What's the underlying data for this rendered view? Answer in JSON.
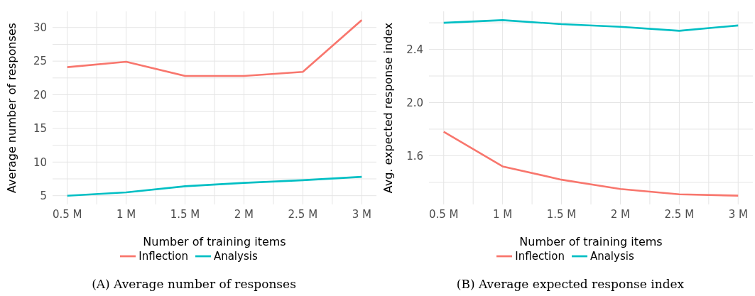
{
  "chart_data": [
    {
      "type": "line",
      "xlabel": "Number of training items",
      "ylabel": "Average number of responses",
      "x": [
        0.5,
        1,
        1.5,
        2,
        2.5,
        3
      ],
      "series": [
        {
          "name": "Inflection",
          "color": "#f8766d",
          "values": [
            24.1,
            24.9,
            22.8,
            22.8,
            23.4,
            31.1
          ]
        },
        {
          "name": "Analysis",
          "color": "#00bfc4",
          "values": [
            5.0,
            5.5,
            6.4,
            6.9,
            7.3,
            7.8
          ]
        }
      ],
      "xlim": [
        0.375,
        3.125
      ],
      "xticks": [
        {
          "value": 0.5,
          "label": "0.5 M"
        },
        {
          "value": 0.75,
          "label": null
        },
        {
          "value": 1,
          "label": "1 M"
        },
        {
          "value": 1.25,
          "label": null
        },
        {
          "value": 1.5,
          "label": "1.5 M"
        },
        {
          "value": 1.75,
          "label": null
        },
        {
          "value": 2,
          "label": "2 M"
        },
        {
          "value": 2.25,
          "label": null
        },
        {
          "value": 2.5,
          "label": "2.5 M"
        },
        {
          "value": 2.75,
          "label": null
        },
        {
          "value": 3,
          "label": "3 M"
        }
      ],
      "ylim": [
        3.7,
        32.4
      ],
      "yticks": [
        5,
        {
          "value": 7.5,
          "label": null
        },
        10,
        {
          "value": 12.5,
          "label": null
        },
        15,
        {
          "value": 17.5,
          "label": null
        },
        20,
        {
          "value": 22.5,
          "label": null
        },
        25,
        {
          "value": 27.5,
          "label": null
        },
        30
      ],
      "grid": true,
      "legend": "bottom",
      "marker": "none",
      "line_style": "solid",
      "annotations": [
        "(A) Average number of responses"
      ]
    },
    {
      "type": "line",
      "xlabel": "Number of training items",
      "ylabel": "Avg. expected response index",
      "x": [
        0.5,
        1,
        1.5,
        2,
        2.5,
        3
      ],
      "series": [
        {
          "name": "Inflection",
          "color": "#f8766d",
          "values": [
            1.78,
            1.52,
            1.42,
            1.35,
            1.31,
            1.3
          ]
        },
        {
          "name": "Analysis",
          "color": "#00bfc4",
          "values": [
            2.6,
            2.62,
            2.59,
            2.57,
            2.54,
            2.58
          ]
        }
      ],
      "xlim": [
        0.375,
        3.125
      ],
      "xticks": [
        {
          "value": 0.5,
          "label": "0.5 M"
        },
        {
          "value": 0.75,
          "label": null
        },
        {
          "value": 1,
          "label": "1 M"
        },
        {
          "value": 1.25,
          "label": null
        },
        {
          "value": 1.5,
          "label": "1.5 M"
        },
        {
          "value": 1.75,
          "label": null
        },
        {
          "value": 2,
          "label": "2 M"
        },
        {
          "value": 2.25,
          "label": null
        },
        {
          "value": 2.5,
          "label": "2.5 M"
        },
        {
          "value": 2.75,
          "label": null
        },
        {
          "value": 3,
          "label": "3 M"
        }
      ],
      "ylim": [
        1.234,
        2.686
      ],
      "yticks": [
        {
          "value": 1.4,
          "label": null
        },
        {
          "value": 1.6,
          "label": "1.6"
        },
        {
          "value": 1.8,
          "label": null
        },
        {
          "value": 2.0,
          "label": "2.0"
        },
        {
          "value": 2.2,
          "label": null
        },
        {
          "value": 2.4,
          "label": "2.4"
        },
        {
          "value": 2.6,
          "label": null
        }
      ],
      "grid": true,
      "legend": "bottom",
      "marker": "none",
      "line_style": "solid",
      "annotations": [
        "(B) Average expected response index"
      ]
    }
  ]
}
